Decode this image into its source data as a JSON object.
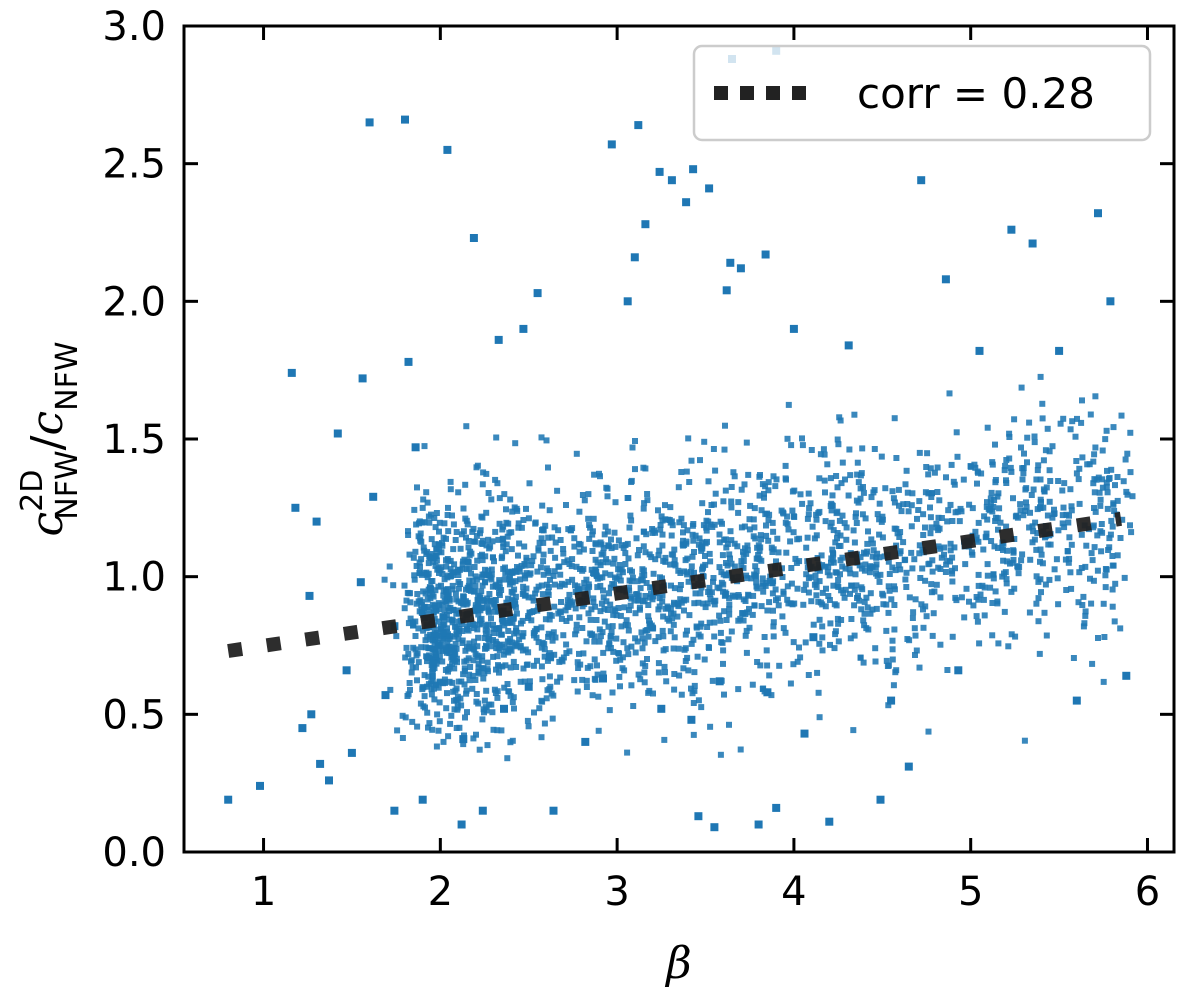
{
  "chart_data": {
    "type": "scatter",
    "xlabel": "β",
    "ylabel": {
      "base": "c",
      "sup": "2D",
      "sub": "NFW",
      "sep": "/",
      "base2": "c",
      "sub2": "NFW"
    },
    "xlim": [
      0.55,
      6.15
    ],
    "ylim": [
      0.0,
      3.0
    ],
    "xticks": [
      1,
      2,
      3,
      4,
      5,
      6
    ],
    "yticks": [
      0.0,
      0.5,
      1.0,
      1.5,
      2.0,
      2.5,
      3.0
    ],
    "xtick_labels": [
      "1",
      "2",
      "3",
      "4",
      "5",
      "6"
    ],
    "ytick_labels": [
      "0.0",
      "0.5",
      "1.0",
      "1.5",
      "2.0",
      "2.5",
      "3.0"
    ],
    "legend": {
      "label": "corr = 0.28",
      "position": "top-right"
    },
    "colors": {
      "points": "#1f77b4",
      "trend": "#222222"
    },
    "trend_line": {
      "style": "dotted",
      "x": [
        0.8,
        5.85
      ],
      "y": [
        0.73,
        1.21
      ]
    },
    "series": [
      {
        "x": [
          0.8,
          0.98,
          1.16,
          1.18,
          1.27,
          1.3,
          1.37,
          1.42,
          1.5,
          1.56,
          1.6,
          1.62,
          1.74,
          1.8,
          1.82,
          1.86,
          1.9,
          2.04,
          2.12,
          2.19,
          2.24,
          2.33,
          2.47,
          2.55,
          2.64,
          2.82,
          2.97,
          3.06,
          3.1,
          3.12,
          3.16,
          3.24,
          3.31,
          3.39,
          3.43,
          3.46,
          3.52,
          3.55,
          3.62,
          3.65,
          3.7,
          3.8,
          3.84,
          3.9,
          4.0,
          4.06,
          4.2,
          4.31,
          4.49,
          4.65,
          4.72,
          4.86,
          5.05,
          5.23,
          5.35,
          5.5,
          5.6,
          5.72,
          5.79,
          5.88,
          3.64,
          3.9,
          1.74,
          1.22,
          1.32,
          1.55,
          1.47,
          1.69,
          1.26,
          2.36,
          2.92,
          3.85,
          4.55,
          4.93,
          2.62,
          3.42,
          2.13,
          2.5,
          3.25,
          3.58,
          4.11
        ],
        "y": [
          0.19,
          0.24,
          1.74,
          1.25,
          0.5,
          1.2,
          0.26,
          1.52,
          0.36,
          1.72,
          2.65,
          1.29,
          0.15,
          2.66,
          1.78,
          1.47,
          0.19,
          2.55,
          0.1,
          2.23,
          0.15,
          1.86,
          1.9,
          2.03,
          0.15,
          0.4,
          2.57,
          2.0,
          2.16,
          2.64,
          2.28,
          2.47,
          2.44,
          2.36,
          2.48,
          0.13,
          2.41,
          0.09,
          2.04,
          2.88,
          2.12,
          0.1,
          2.17,
          2.91,
          1.9,
          0.43,
          0.11,
          1.84,
          0.19,
          0.31,
          2.44,
          2.08,
          1.82,
          2.26,
          2.21,
          1.82,
          0.55,
          2.32,
          2.0,
          0.64,
          2.14,
          0.16,
          0.82,
          0.45,
          0.32,
          0.98,
          0.66,
          0.57,
          0.93,
          0.52,
          0.63,
          0.58,
          0.55,
          0.66,
          0.71,
          0.48,
          0.41,
          0.6,
          0.52,
          0.62,
          0.78
        ]
      }
    ]
  }
}
